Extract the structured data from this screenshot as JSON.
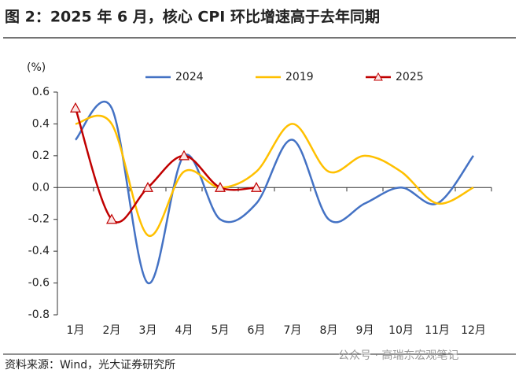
{
  "chart_data": {
    "type": "line",
    "title": "图 2：2025 年 6 月，核心 CPI 环比增速高于去年同期",
    "y_label": "(%)",
    "source": "资料来源：Wind，光大证券研究所",
    "watermark": "公众号 · 高瑞东宏观笔记",
    "categories": [
      "1月",
      "2月",
      "3月",
      "4月",
      "5月",
      "6月",
      "7月",
      "8月",
      "9月",
      "10月",
      "11月",
      "12月"
    ],
    "series": [
      {
        "name": "2024",
        "color": "#4472c4",
        "marker": "none",
        "values": [
          0.3,
          0.5,
          -0.6,
          0.2,
          -0.2,
          -0.1,
          0.3,
          -0.2,
          -0.1,
          0.0,
          -0.1,
          0.2
        ]
      },
      {
        "name": "2019",
        "color": "#ffc000",
        "marker": "none",
        "values": [
          0.4,
          0.4,
          -0.3,
          0.1,
          0.0,
          0.1,
          0.4,
          0.1,
          0.2,
          0.1,
          -0.1,
          0.0
        ]
      },
      {
        "name": "2025",
        "color": "#c00000",
        "marker": "triangle",
        "values": [
          0.5,
          -0.2,
          0.0,
          0.2,
          0.0,
          0.0,
          null,
          null,
          null,
          null,
          null,
          null
        ]
      }
    ],
    "ylim": [
      -0.8,
      0.6
    ],
    "yticks": [
      0.6,
      0.4,
      0.2,
      {
        "value": 0,
        "label": "0.0"
      },
      -0.2,
      -0.4,
      -0.6,
      -0.8
    ],
    "grid": false,
    "legend": "top"
  }
}
